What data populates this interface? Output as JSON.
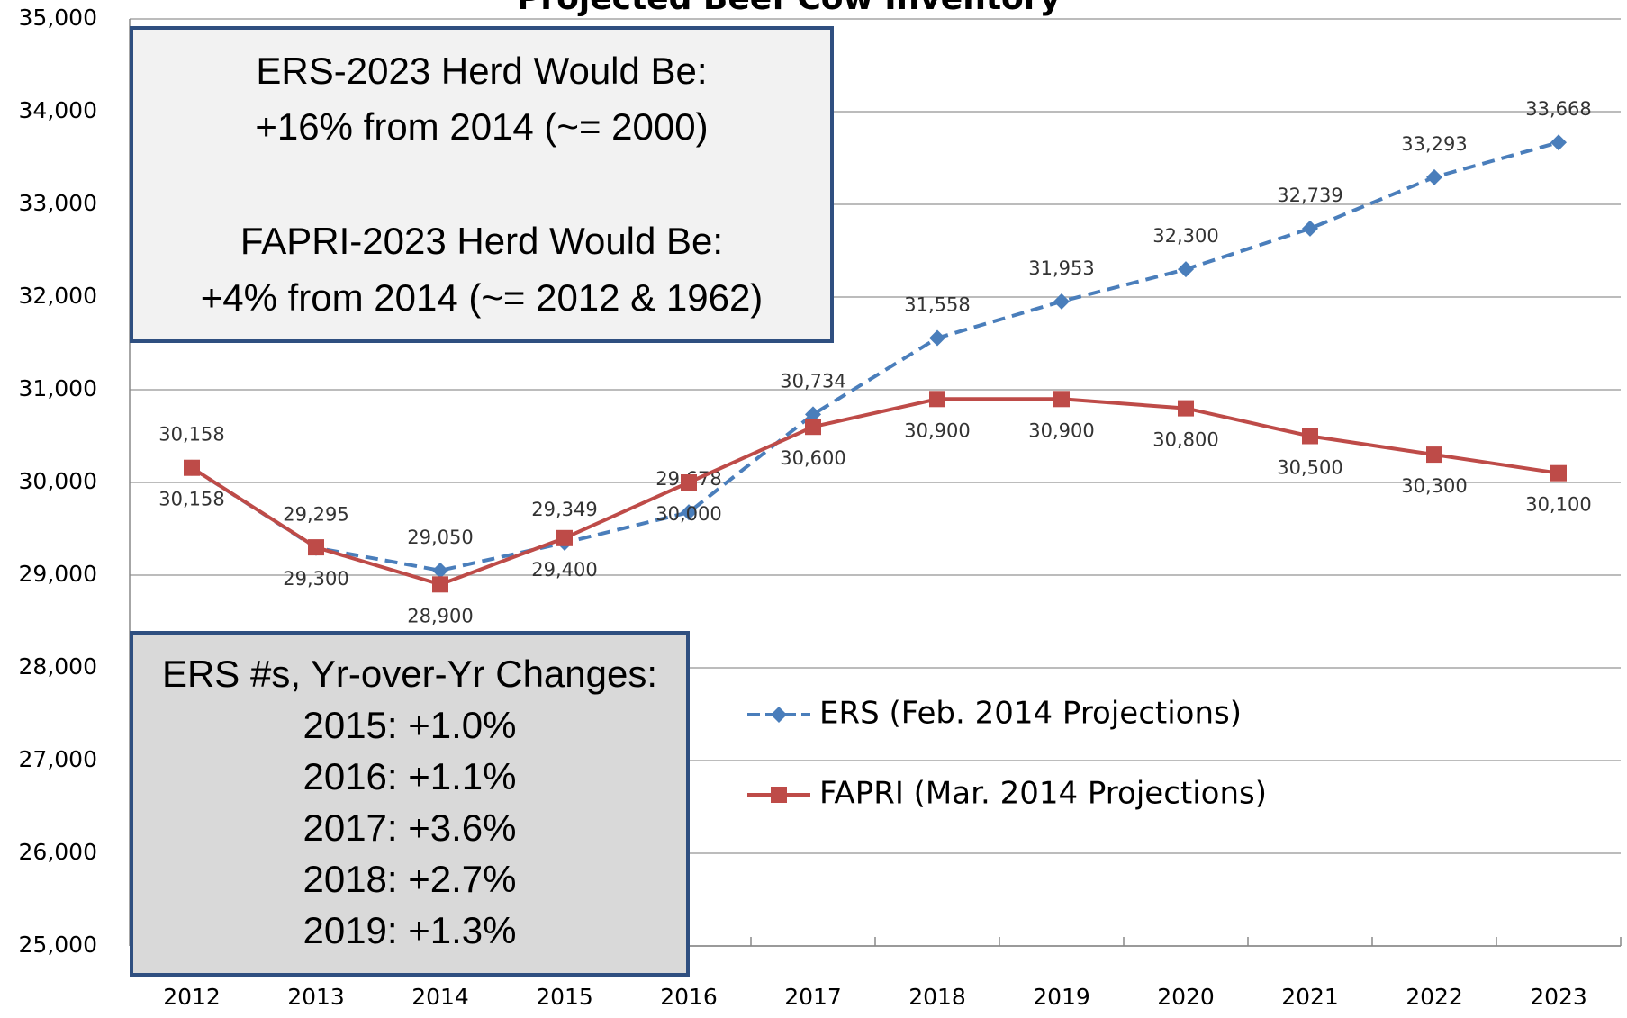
{
  "chart_data": {
    "type": "line",
    "title": "Projected Beef Cow Inventory",
    "categories": [
      "2012",
      "2013",
      "2014",
      "2015",
      "2016",
      "2017",
      "2018",
      "2019",
      "2020",
      "2021",
      "2022",
      "2023"
    ],
    "series": [
      {
        "name": "ERS (Feb. 2014 Projections)",
        "color": "#4a7ebb",
        "dash": true,
        "marker": "diamond",
        "values": [
          30158,
          29295,
          29050,
          29349,
          29678,
          30734,
          31558,
          31953,
          32300,
          32739,
          33293,
          33668
        ],
        "value_labels": [
          "30,158",
          "29,295",
          "29,050",
          "29,349",
          "29,678",
          "30,734",
          "31,558",
          "31,953",
          "32,300",
          "32,739",
          "33,293",
          "33,668"
        ]
      },
      {
        "name": "FAPRI (Mar. 2014 Projections)",
        "color": "#be4b48",
        "dash": false,
        "marker": "square",
        "values": [
          30158,
          29300,
          28900,
          29400,
          30000,
          30600,
          30900,
          30900,
          30800,
          30500,
          30300,
          30100
        ],
        "value_labels": [
          "30,158",
          "29,300",
          "28,900",
          "29,400",
          "30,000",
          "30,600",
          "30,900",
          "30,900",
          "30,800",
          "30,500",
          "30,300",
          "30,100"
        ]
      }
    ],
    "ylim": [
      25000,
      35000
    ],
    "yticks": [
      {
        "value": 25000,
        "label": "25,000"
      },
      {
        "value": 26000,
        "label": "26,000"
      },
      {
        "value": 27000,
        "label": "27,000"
      },
      {
        "value": 28000,
        "label": "28,000"
      },
      {
        "value": 29000,
        "label": "29,000"
      },
      {
        "value": 30000,
        "label": "30,000"
      },
      {
        "value": 31000,
        "label": "31,000"
      },
      {
        "value": 32000,
        "label": "32,000"
      },
      {
        "value": 33000,
        "label": "33,000"
      },
      {
        "value": 34000,
        "label": "34,000"
      },
      {
        "value": 35000,
        "label": "35,000"
      }
    ],
    "grid": true,
    "legend": "center",
    "annotations": [
      {
        "lines": [
          "ERS-2023 Herd Would Be:",
          "+16% from 2014 (~= 2000)",
          "FAPRI-2023 Herd Would Be:",
          "+4% from 2014 (~= 2012 & 1962)"
        ]
      },
      {
        "lines": [
          "ERS #s, Yr-over-Yr Changes:",
          "2015: +1.0%",
          "2016: +1.1%",
          "2017: +3.6%",
          "2018: +2.7%",
          "2019: +1.3%"
        ]
      }
    ]
  }
}
